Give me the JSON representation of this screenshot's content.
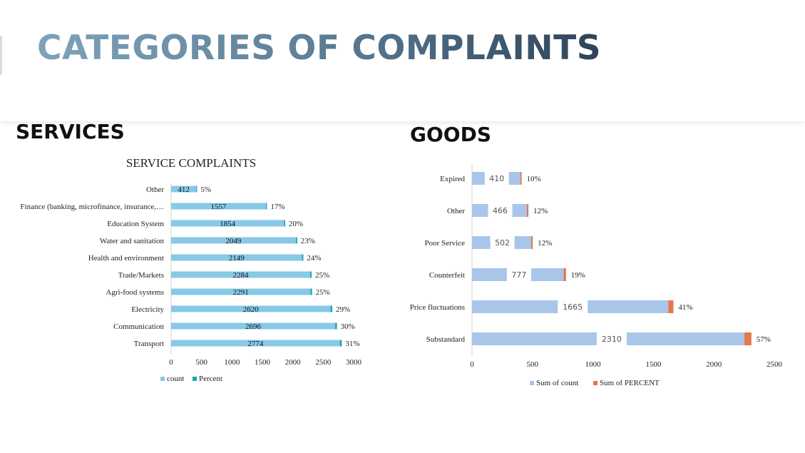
{
  "slide_title": "CATEGORIES OF COMPLAINTS",
  "section_services": "SERVICES",
  "section_goods": "GOODS",
  "chart_data": [
    {
      "type": "bar",
      "orientation": "horizontal",
      "title": "SERVICE COMPLAINTS",
      "categories": [
        "Other",
        "Finance (banking, microfinance, insurance,…",
        "Education System",
        "Water and sanitation",
        "Health and environment",
        "Trade/Markets",
        "Agri-food systems",
        "Electricity",
        "Communication",
        "Transport"
      ],
      "series": [
        {
          "name": "count",
          "values": [
            412,
            1557,
            1854,
            2049,
            2149,
            2284,
            2291,
            2620,
            2696,
            2774
          ],
          "color": "#87c9e7"
        },
        {
          "name": "Percent",
          "values": [
            5,
            17,
            20,
            23,
            24,
            25,
            25,
            29,
            30,
            31
          ],
          "color": "#1aa6b5"
        }
      ],
      "count_labels": [
        "412",
        "1557",
        "1854",
        "2049",
        "2149",
        "2284",
        "2291",
        "2620",
        "2696",
        "2774"
      ],
      "percent_labels": [
        "5%",
        "17%",
        "20%",
        "23%",
        "24%",
        "25%",
        "25%",
        "29%",
        "30%",
        "31%"
      ],
      "xlim": [
        0,
        3000
      ],
      "xticks": [
        "0",
        "500",
        "1000",
        "1500",
        "2000",
        "2500",
        "3000"
      ],
      "legend": [
        "count",
        "Percent"
      ],
      "legend_position": "bottom",
      "grid": false
    },
    {
      "type": "bar",
      "orientation": "horizontal",
      "title": "",
      "categories": [
        "Expired",
        "Other",
        "Poor Service",
        "Counterfeit",
        "Price fluctuations",
        "Substandard"
      ],
      "series": [
        {
          "name": "Sum of count",
          "values": [
            410,
            466,
            502,
            777,
            1665,
            2310
          ],
          "color": "#a9c6ea"
        },
        {
          "name": "Sum of PERCENT",
          "values": [
            10,
            12,
            12,
            19,
            41,
            57
          ],
          "color": "#e8774a"
        }
      ],
      "count_labels": [
        "410",
        "466",
        "502",
        "777",
        "1665",
        "2310"
      ],
      "percent_labels": [
        "10%",
        "12%",
        "12%",
        "19%",
        "41%",
        "57%"
      ],
      "xlim": [
        0,
        2500
      ],
      "xticks": [
        "0",
        "500",
        "1000",
        "1500",
        "2000",
        "2500"
      ],
      "legend": [
        "Sum of count",
        "Sum of PERCENT"
      ],
      "legend_position": "bottom",
      "grid": false
    }
  ]
}
